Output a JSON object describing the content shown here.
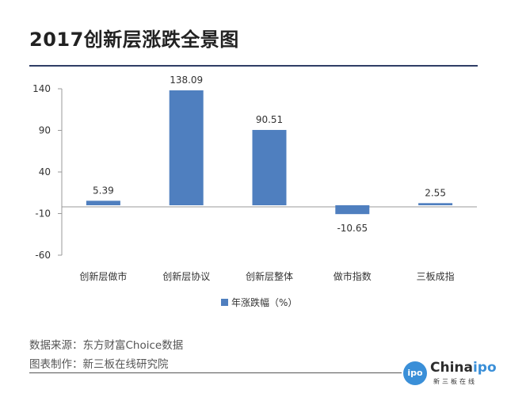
{
  "title": "2017创新层涨跌全景图",
  "chart_data": {
    "type": "bar",
    "categories": [
      "创新层做市",
      "创新层协议",
      "创新层整体",
      "做市指数",
      "三板成指"
    ],
    "series": [
      {
        "name": "年涨跌幅（%）",
        "values": [
          5.39,
          138.09,
          90.51,
          -10.65,
          2.55
        ]
      }
    ],
    "value_labels": [
      "5.39",
      "138.09",
      "90.51",
      "-10.65",
      "2.55"
    ],
    "yticks": [
      140,
      90,
      40,
      -10,
      -60
    ],
    "ytick_labels": [
      "140",
      "90",
      "40",
      "-10",
      "-60"
    ],
    "ylim": [
      -60,
      140
    ],
    "bar_color": "#4f7fbf",
    "legend_position": "bottom-center",
    "grid": false
  },
  "footer": {
    "source": "数据来源：东方财富Choice数据",
    "maker": "图表制作：新三板在线研究院"
  },
  "logo": {
    "circle_text": "ipo",
    "word_prefix": "China",
    "word_highlight": "ipo",
    "subtitle": "新三板在线"
  }
}
